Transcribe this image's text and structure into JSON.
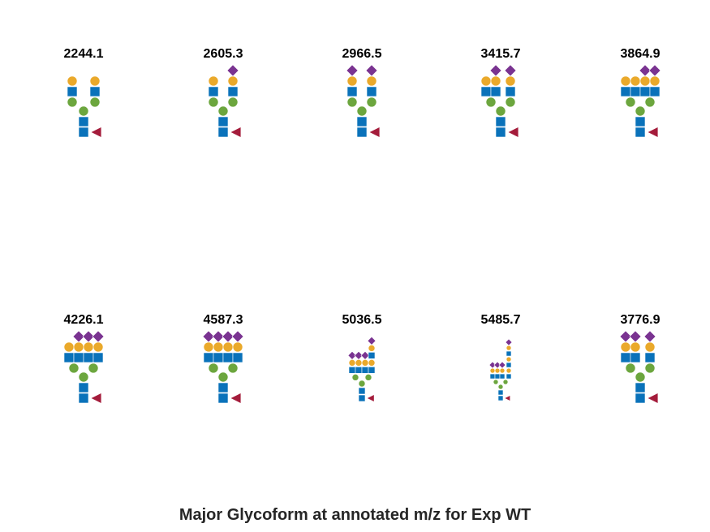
{
  "caption": "Major Glycoform at annotated m/z for Exp WT",
  "colors": {
    "hexnac_square": "#0a72ba",
    "galactose_circle": "#eaa92b",
    "mannose_circle": "#6ca63e",
    "sialic_diamond": "#7a3391",
    "fucose_triangle": "#a41c3b"
  },
  "legend_symbols": [
    "blue-square",
    "yellow-circle",
    "green-circle",
    "purple-diamond",
    "red-triangle"
  ],
  "glycoforms": [
    {
      "mz": "2244.1"
    },
    {
      "mz": "2605.3"
    },
    {
      "mz": "2966.5"
    },
    {
      "mz": "3415.7"
    },
    {
      "mz": "3864.9"
    },
    {
      "mz": "4226.1"
    },
    {
      "mz": "4587.3"
    },
    {
      "mz": "5036.5"
    },
    {
      "mz": "5485.7"
    },
    {
      "mz": "3776.9"
    }
  ]
}
